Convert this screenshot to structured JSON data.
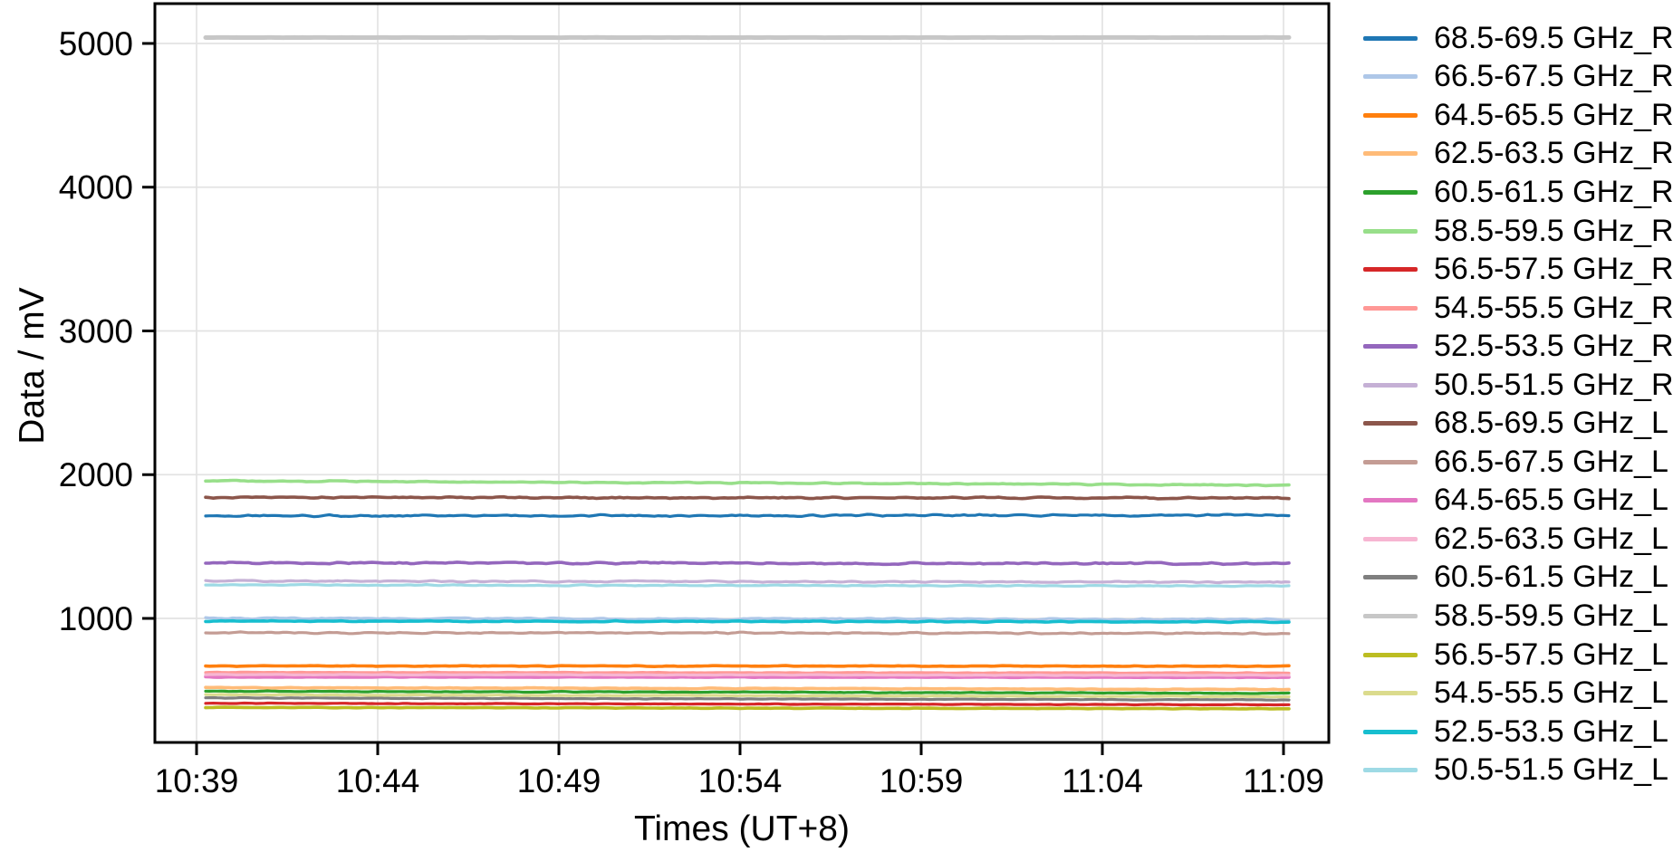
{
  "chart_data": {
    "type": "line",
    "title": "",
    "xlabel": "Times (UT+8)",
    "ylabel": "Data / mV",
    "grid": "on",
    "legend_position": "right-outside",
    "grid_color": "#e3e3e3",
    "x_ticks": [
      {
        "label": "10:39",
        "minute": 639
      },
      {
        "label": "10:44",
        "minute": 644
      },
      {
        "label": "10:49",
        "minute": 649
      },
      {
        "label": "10:54",
        "minute": 654
      },
      {
        "label": "10:59",
        "minute": 659
      },
      {
        "label": "11:04",
        "minute": 664
      },
      {
        "label": "11:09",
        "minute": 669
      }
    ],
    "y_ticks": [
      1000,
      2000,
      3000,
      4000,
      5000
    ],
    "xlim_minutes": [
      637.85,
      670.25
    ],
    "ylim": [
      137,
      5277
    ],
    "t_start": 639.25,
    "t_end": 669.15,
    "series": [
      {
        "label": "68.5-69.5 GHz_R",
        "color": "#1f77b4",
        "start": 1713,
        "end": 1718,
        "noise": 9,
        "width": 3.2
      },
      {
        "label": "66.5-67.5 GHz_R",
        "color": "#aec7e8",
        "start": 1000,
        "end": 993,
        "noise": 8,
        "width": 3.2
      },
      {
        "label": "64.5-65.5 GHz_R",
        "color": "#ff7f0e",
        "start": 669,
        "end": 668,
        "noise": 4,
        "width": 3.6
      },
      {
        "label": "62.5-63.5 GHz_R",
        "color": "#ffbb78",
        "start": 519,
        "end": 505,
        "noise": 4,
        "width": 3.6
      },
      {
        "label": "60.5-61.5 GHz_R",
        "color": "#2ca02c",
        "start": 494,
        "end": 479,
        "noise": 4,
        "width": 3.2
      },
      {
        "label": "58.5-59.5 GHz_R",
        "color": "#98df8a",
        "start": 1957,
        "end": 1927,
        "noise": 6,
        "width": 3.6
      },
      {
        "label": "56.5-57.5 GHz_R",
        "color": "#d62728",
        "start": 409,
        "end": 399,
        "noise": 3,
        "width": 3.2
      },
      {
        "label": "54.5-55.5 GHz_R",
        "color": "#ff9896",
        "start": 625,
        "end": 620,
        "noise": 3,
        "width": 3.2
      },
      {
        "label": "52.5-53.5 GHz_R",
        "color": "#9467bd",
        "start": 1387,
        "end": 1381,
        "noise": 9,
        "width": 3.6
      },
      {
        "label": "50.5-51.5 GHz_R",
        "color": "#c5b0d5",
        "start": 1261,
        "end": 1252,
        "noise": 7,
        "width": 3.2
      },
      {
        "label": "68.5-69.5 GHz_L",
        "color": "#8c564b",
        "start": 1841,
        "end": 1838,
        "noise": 8,
        "width": 3.6
      },
      {
        "label": "66.5-67.5 GHz_L",
        "color": "#c49c94",
        "start": 901,
        "end": 896,
        "noise": 7,
        "width": 3.2
      },
      {
        "label": "64.5-65.5 GHz_L",
        "color": "#e377c2",
        "start": 592,
        "end": 590,
        "noise": 3,
        "width": 3.6
      },
      {
        "label": "62.5-63.5 GHz_L",
        "color": "#f7b6d2",
        "start": 609,
        "end": 604,
        "noise": 3,
        "width": 3.2
      },
      {
        "label": "60.5-61.5 GHz_L",
        "color": "#7f7f7f",
        "start": 447,
        "end": 433,
        "noise": 3,
        "width": 3.2
      },
      {
        "label": "58.5-59.5 GHz_L",
        "color": "#c7c7c7",
        "start": 5041,
        "end": 5041,
        "noise": 1,
        "width": 5
      },
      {
        "label": "56.5-57.5 GHz_L",
        "color": "#bcbd22",
        "start": 381,
        "end": 371,
        "noise": 3,
        "width": 3.6
      },
      {
        "label": "54.5-55.5 GHz_L",
        "color": "#dbdb8d",
        "start": 469,
        "end": 456,
        "noise": 3,
        "width": 3.2
      },
      {
        "label": "52.5-53.5 GHz_L",
        "color": "#17becf",
        "start": 981,
        "end": 976,
        "noise": 5,
        "width": 3.6
      },
      {
        "label": "50.5-51.5 GHz_L",
        "color": "#9edae5",
        "start": 1233,
        "end": 1226,
        "noise": 5,
        "width": 3.2
      }
    ]
  }
}
